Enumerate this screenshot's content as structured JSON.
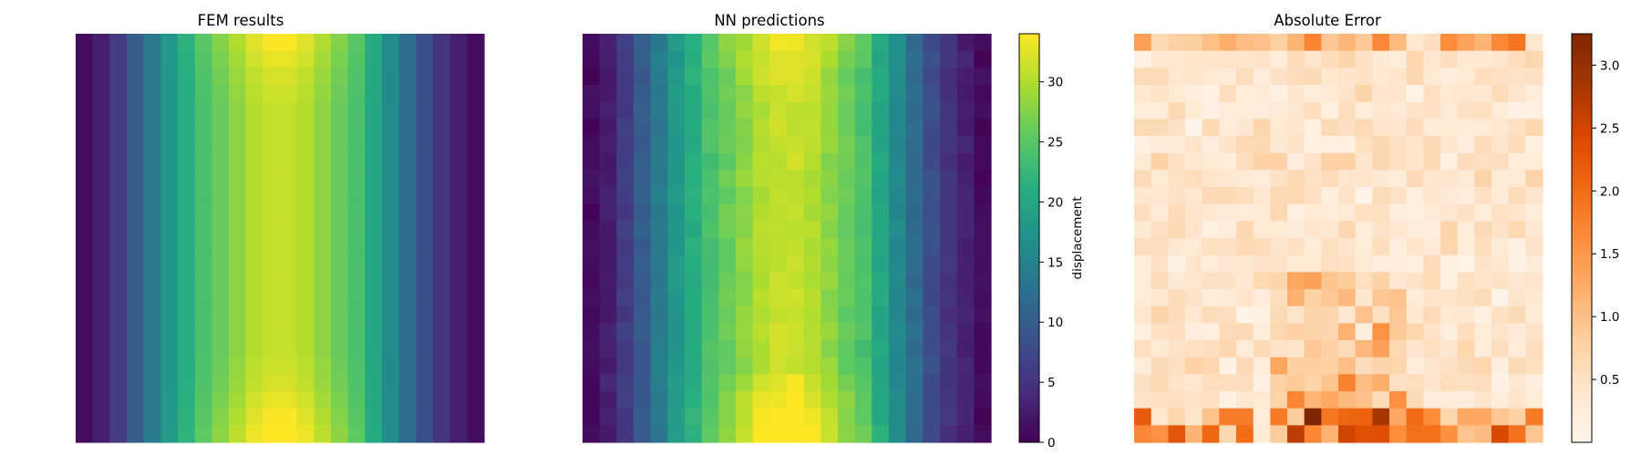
{
  "chart_data": [
    {
      "type": "heatmap",
      "title": "FEM results",
      "grid": [
        24,
        24
      ],
      "colormap": "viridis",
      "value_range": [
        0,
        34
      ],
      "column_profile": [
        1,
        3,
        6,
        10,
        14,
        18,
        21,
        24,
        26,
        28,
        30,
        31,
        31,
        30,
        28,
        26,
        24,
        20,
        16,
        12,
        8,
        5,
        3,
        1
      ],
      "edge_row_boost": [
        6,
        4,
        2,
        1,
        0,
        0,
        0,
        0,
        0,
        0,
        0,
        0,
        0,
        0,
        0,
        0,
        0,
        0,
        0,
        1,
        2,
        4,
        6,
        8
      ]
    },
    {
      "type": "heatmap",
      "title": "NN predictions",
      "grid": [
        24,
        24
      ],
      "colormap": "viridis",
      "value_range": [
        0,
        34
      ],
      "colorbar": {
        "label": "displacement",
        "ticks": [
          "0",
          "5",
          "10",
          "15",
          "20",
          "25",
          "30"
        ],
        "tick_values": [
          0,
          5,
          10,
          15,
          20,
          25,
          30
        ],
        "range": [
          0,
          34
        ]
      }
    },
    {
      "type": "heatmap",
      "title": "Absolute Error",
      "grid": [
        24,
        24
      ],
      "colormap": "oranges",
      "value_range": [
        0,
        3.25
      ],
      "colorbar": {
        "label": "",
        "ticks": [
          "0.5",
          "1.0",
          "1.5",
          "2.0",
          "2.5",
          "3.0"
        ],
        "tick_values": [
          0.5,
          1.0,
          1.5,
          2.0,
          2.5,
          3.0
        ],
        "range": [
          0,
          3.25
        ]
      }
    }
  ]
}
